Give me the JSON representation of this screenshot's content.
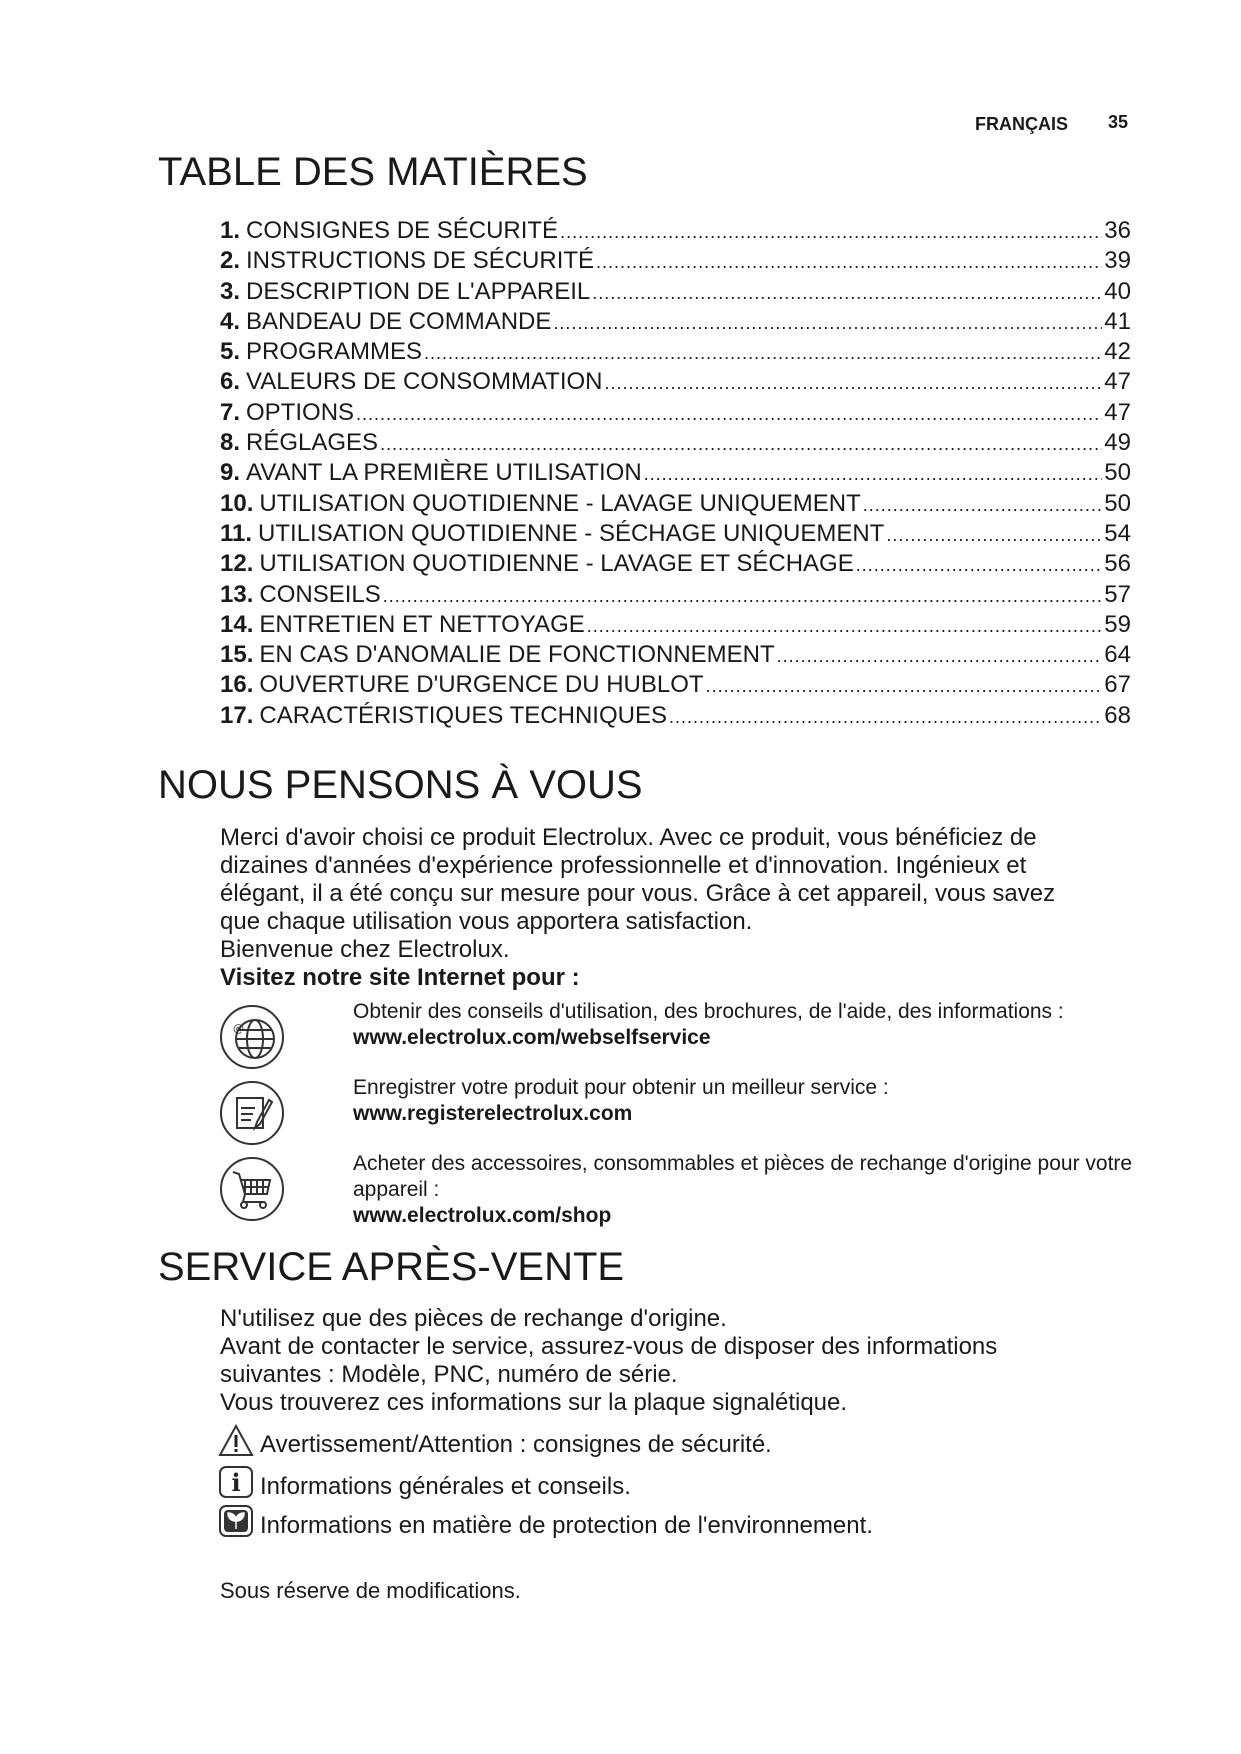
{
  "header": {
    "language": "FRANÇAIS",
    "page_number": "35"
  },
  "toc": {
    "title": "TABLE DES MATIÈRES",
    "items": [
      {
        "num": "1.",
        "label": "CONSIGNES DE SÉCURITÉ",
        "page": "36"
      },
      {
        "num": "2.",
        "label": "INSTRUCTIONS DE SÉCURITÉ",
        "page": "39"
      },
      {
        "num": "3.",
        "label": "DESCRIPTION DE L'APPAREIL",
        "page": "40"
      },
      {
        "num": "4.",
        "label": "BANDEAU DE COMMANDE",
        "page": "41"
      },
      {
        "num": "5.",
        "label": "PROGRAMMES",
        "page": "42"
      },
      {
        "num": "6.",
        "label": "VALEURS DE CONSOMMATION",
        "page": "47"
      },
      {
        "num": "7.",
        "label": "OPTIONS",
        "page": "47"
      },
      {
        "num": "8.",
        "label": "RÉGLAGES",
        "page": "49"
      },
      {
        "num": "9.",
        "label": "AVANT LA PREMIÈRE UTILISATION",
        "page": "50"
      },
      {
        "num": "10.",
        "label": "UTILISATION QUOTIDIENNE - LAVAGE UNIQUEMENT",
        "page": "50"
      },
      {
        "num": "11.",
        "label": "UTILISATION QUOTIDIENNE - SÉCHAGE UNIQUEMENT",
        "page": "54"
      },
      {
        "num": "12.",
        "label": "UTILISATION QUOTIDIENNE - LAVAGE ET SÉCHAGE",
        "page": "56"
      },
      {
        "num": "13.",
        "label": "CONSEILS",
        "page": "57"
      },
      {
        "num": "14.",
        "label": "ENTRETIEN ET NETTOYAGE",
        "page": "59"
      },
      {
        "num": "15.",
        "label": "EN CAS D'ANOMALIE DE FONCTIONNEMENT",
        "page": "64"
      },
      {
        "num": "16.",
        "label": "OUVERTURE D'URGENCE DU HUBLOT",
        "page": "67"
      },
      {
        "num": "17.",
        "label": "CARACTÉRISTIQUES TECHNIQUES",
        "page": "68"
      }
    ]
  },
  "intro": {
    "title": "NOUS PENSONS À VOUS",
    "lines": [
      "Merci d'avoir choisi ce produit Electrolux. Avec ce produit, vous bénéficiez de",
      "dizaines d'années d'expérience professionnelle et d'innovation. Ingénieux et",
      "élégant, il a été conçu sur mesure pour vous. Grâce à cet appareil, vous savez",
      "que chaque utilisation vous apportera satisfaction.",
      "Bienvenue chez Electrolux."
    ],
    "visit": "Visitez notre site Internet pour :",
    "links": [
      {
        "icon": "globe-at-icon",
        "text": "Obtenir des conseils d'utilisation, des brochures, de l'aide, des informations :",
        "url": "www.electrolux.com/webselfservice"
      },
      {
        "icon": "register-document-icon",
        "text": "Enregistrer votre produit pour obtenir un meilleur service :",
        "url": "www.registerelectrolux.com"
      },
      {
        "icon": "shopping-cart-icon",
        "text": "Acheter des accessoires, consommables et pièces de rechange d'origine pour votre appareil :",
        "url": "www.electrolux.com/shop"
      }
    ]
  },
  "service": {
    "title": "SERVICE APRÈS-VENTE",
    "lines": [
      "N'utilisez que des pièces de rechange d'origine.",
      "Avant de contacter le service, assurez-vous de disposer des informations",
      "suivantes : Modèle, PNC, numéro de série.",
      "Vous trouverez ces informations sur la plaque signalétique."
    ],
    "symbols": [
      {
        "icon": "warning-icon",
        "text": "Avertissement/Attention : consignes de sécurité."
      },
      {
        "icon": "info-icon",
        "text": "Informations générales et conseils."
      },
      {
        "icon": "environment-icon",
        "text": "Informations en matière de protection de l'environnement."
      }
    ],
    "footer": "Sous réserve de modifications."
  }
}
